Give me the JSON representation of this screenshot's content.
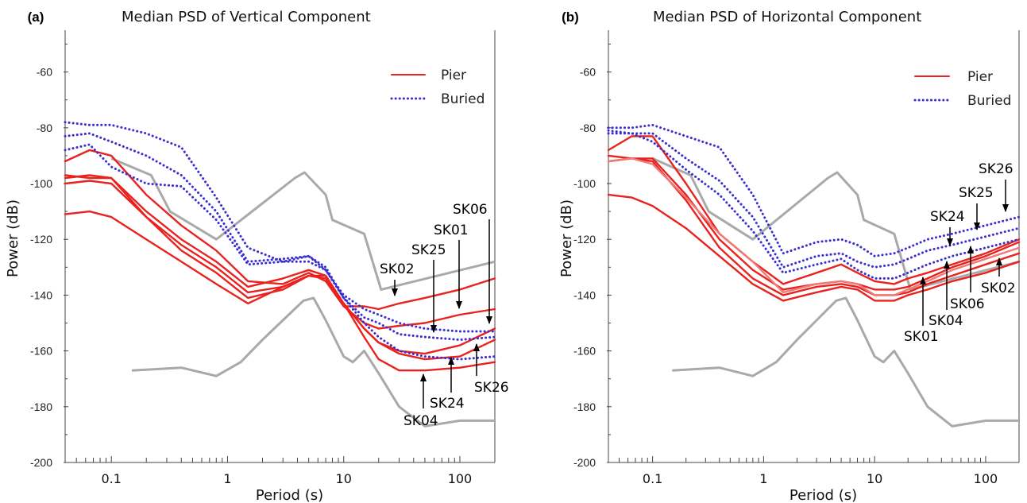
{
  "chart_data": [
    {
      "type": "line",
      "panel_label": "(a)",
      "title": "Median PSD of Vertical Component",
      "xlabel": "Period (s)",
      "ylabel": "Power (dB)",
      "xscale": "log",
      "xlim": [
        0.04,
        200
      ],
      "ylim": [
        -200,
        -45
      ],
      "xticks": [
        0.1,
        1,
        10,
        100
      ],
      "xtick_labels": [
        "0.1",
        "1",
        "10",
        "100"
      ],
      "yticks": [
        -200,
        -180,
        -160,
        -140,
        -120,
        -100,
        -80,
        -60
      ],
      "ytick_labels": [
        "-200",
        "-180",
        "-160",
        "-140",
        "-120",
        "-100",
        "-80",
        "-60"
      ],
      "grid": false,
      "legend_position": "top-right",
      "legend": [
        {
          "label": "Pier",
          "style": "solid",
          "color": "#e8231f"
        },
        {
          "label": "Buried",
          "style": "dotted",
          "color": "#3a2fcf"
        }
      ],
      "noise_models": [
        {
          "kind": "high",
          "color": "#a9a9a9",
          "x": [
            0.1,
            0.22,
            0.32,
            0.8,
            3.8,
            4.6,
            7.0,
            8.0,
            15,
            21,
            200
          ],
          "y": [
            -91,
            -97,
            -110,
            -120,
            -98,
            -96,
            -104,
            -113,
            -118,
            -138,
            -128
          ]
        },
        {
          "kind": "low",
          "color": "#a9a9a9",
          "x": [
            0.15,
            0.4,
            0.8,
            1.3,
            2,
            3,
            4.5,
            5.5,
            7,
            10,
            12,
            15,
            20,
            30,
            50,
            100,
            200
          ],
          "y": [
            -167,
            -166,
            -169,
            -164,
            -156,
            -149,
            -142,
            -141,
            -149,
            -162,
            -164,
            -160,
            -168,
            -180,
            -187,
            -185,
            -185
          ]
        }
      ],
      "series": [
        {
          "group": "Pier",
          "style": "solid",
          "color": "#e8231f",
          "x": [
            0.04,
            0.065,
            0.1,
            0.2,
            0.4,
            0.8,
            1.5,
            3,
            5,
            7,
            10,
            15,
            20,
            30,
            50,
            100,
            200
          ],
          "y": [
            -92,
            -88,
            -90,
            -104,
            -115,
            -124,
            -135,
            -136,
            -132,
            -135,
            -144,
            -144,
            -145,
            -143,
            -141,
            -138,
            -134
          ]
        },
        {
          "group": "Pier",
          "style": "solid",
          "color": "#e8231f",
          "x": [
            0.04,
            0.065,
            0.1,
            0.2,
            0.4,
            0.8,
            1.5,
            3,
            5,
            7,
            10,
            15,
            20,
            30,
            50,
            100,
            200
          ],
          "y": [
            -98,
            -97,
            -98,
            -110,
            -120,
            -128,
            -137,
            -134,
            -131,
            -133,
            -144,
            -150,
            -152,
            -151,
            -150,
            -147,
            -145
          ]
        },
        {
          "group": "Pier",
          "style": "solid",
          "color": "#e8231f",
          "x": [
            0.04,
            0.065,
            0.1,
            0.2,
            0.4,
            0.8,
            1.5,
            3,
            5,
            7,
            10,
            15,
            20,
            30,
            50,
            100,
            200
          ],
          "y": [
            -97,
            -98,
            -98,
            -112,
            -124,
            -132,
            -141,
            -138,
            -133,
            -134,
            -143,
            -152,
            -157,
            -160,
            -161,
            -158,
            -152
          ]
        },
        {
          "group": "Pier",
          "style": "solid",
          "color": "#e8231f",
          "x": [
            0.04,
            0.065,
            0.1,
            0.2,
            0.4,
            0.8,
            1.5,
            3,
            5,
            7,
            10,
            15,
            20,
            30,
            50,
            100,
            200
          ],
          "y": [
            -111,
            -110,
            -112,
            -120,
            -128,
            -136,
            -143,
            -137,
            -133,
            -133,
            -143,
            -155,
            -163,
            -167,
            -167,
            -166,
            -164
          ]
        },
        {
          "group": "Pier",
          "style": "solid",
          "color": "#e8231f",
          "x": [
            0.04,
            0.065,
            0.1,
            0.2,
            0.4,
            0.8,
            1.5,
            3,
            5,
            7,
            10,
            15,
            20,
            30,
            50,
            100,
            200
          ],
          "y": [
            -100,
            -99,
            -100,
            -112,
            -122,
            -130,
            -139,
            -137,
            -133,
            -134,
            -143,
            -152,
            -157,
            -161,
            -163,
            -162,
            -156
          ]
        },
        {
          "group": "Buried",
          "style": "dotted",
          "color": "#3a2fcf",
          "x": [
            0.04,
            0.065,
            0.1,
            0.2,
            0.4,
            0.8,
            1.5,
            3,
            5,
            7,
            10,
            15,
            20,
            30,
            50,
            100,
            200
          ],
          "y": [
            -78,
            -79,
            -79,
            -82,
            -87,
            -105,
            -123,
            -128,
            -128,
            -131,
            -140,
            -145,
            -147,
            -150,
            -152,
            -153,
            -153
          ]
        },
        {
          "group": "Buried",
          "style": "dotted",
          "color": "#3a2fcf",
          "x": [
            0.04,
            0.065,
            0.1,
            0.2,
            0.4,
            0.8,
            1.5,
            3,
            5,
            7,
            10,
            15,
            20,
            30,
            50,
            100,
            200
          ],
          "y": [
            -83,
            -82,
            -85,
            -90,
            -97,
            -110,
            -128,
            -127,
            -126,
            -130,
            -141,
            -148,
            -150,
            -154,
            -155,
            -156,
            -155
          ]
        },
        {
          "group": "Buried",
          "style": "dotted",
          "color": "#3a2fcf",
          "x": [
            0.04,
            0.065,
            0.1,
            0.2,
            0.4,
            0.8,
            1.5,
            3,
            5,
            7,
            10,
            15,
            20,
            30,
            50,
            100,
            200
          ],
          "y": [
            -88,
            -86,
            -94,
            -100,
            -101,
            -113,
            -129,
            -128,
            -126,
            -131,
            -141,
            -150,
            -155,
            -160,
            -162,
            -163,
            -162
          ]
        }
      ],
      "annotations": [
        {
          "label": "SK02",
          "arrow_to": {
            "x": 30,
            "y": -143
          }
        },
        {
          "label": "SK25",
          "arrow_to": {
            "x": 60,
            "y": -155
          }
        },
        {
          "label": "SK01",
          "arrow_to": {
            "x": 100,
            "y": -150
          }
        },
        {
          "label": "SK06",
          "arrow_to": {
            "x": 170,
            "y": -154
          }
        },
        {
          "label": "SK26",
          "arrow_to": {
            "x": 120,
            "y": -157
          }
        },
        {
          "label": "SK24",
          "arrow_to": {
            "x": 75,
            "y": -163
          }
        },
        {
          "label": "SK04",
          "arrow_to": {
            "x": 45,
            "y": -167
          }
        }
      ]
    },
    {
      "type": "line",
      "panel_label": "(b)",
      "title": "Median PSD of Horizontal Component",
      "xlabel": "Period (s)",
      "ylabel": "Power (dB)",
      "xscale": "log",
      "xlim": [
        0.04,
        200
      ],
      "ylim": [
        -200,
        -45
      ],
      "xticks": [
        0.1,
        1,
        10,
        100
      ],
      "xtick_labels": [
        "0.1",
        "1",
        "10",
        "100"
      ],
      "yticks": [
        -200,
        -180,
        -160,
        -140,
        -120,
        -100,
        -80,
        -60
      ],
      "ytick_labels": [
        "-200",
        "-180",
        "-160",
        "-140",
        "-120",
        "-100",
        "-80",
        "-60"
      ],
      "grid": false,
      "legend_position": "top-right",
      "legend": [
        {
          "label": "Pier",
          "style": "solid",
          "color": "#e8231f"
        },
        {
          "label": "Buried",
          "style": "dotted",
          "color": "#3a2fcf"
        }
      ],
      "noise_models": [
        {
          "kind": "high",
          "color": "#a9a9a9",
          "x": [
            0.1,
            0.22,
            0.32,
            0.8,
            3.8,
            4.6,
            7.0,
            8.0,
            15,
            21,
            200
          ],
          "y": [
            -91,
            -97,
            -110,
            -120,
            -98,
            -96,
            -104,
            -113,
            -118,
            -138,
            -128
          ]
        },
        {
          "kind": "low",
          "color": "#a9a9a9",
          "x": [
            0.15,
            0.4,
            0.8,
            1.3,
            2,
            3,
            4.5,
            5.5,
            7,
            10,
            12,
            15,
            20,
            30,
            50,
            100,
            200
          ],
          "y": [
            -167,
            -166,
            -169,
            -164,
            -156,
            -149,
            -142,
            -141,
            -149,
            -162,
            -164,
            -160,
            -168,
            -180,
            -187,
            -185,
            -185
          ]
        }
      ],
      "series": [
        {
          "group": "Pier",
          "style": "solid",
          "color": "#e8231f",
          "x": [
            0.04,
            0.065,
            0.1,
            0.2,
            0.4,
            0.8,
            1.5,
            3,
            5,
            7,
            10,
            15,
            20,
            30,
            50,
            100,
            200
          ],
          "y": [
            -88,
            -83,
            -83,
            -100,
            -118,
            -128,
            -136,
            -132,
            -129,
            -132,
            -135,
            -136,
            -134,
            -132,
            -129,
            -125,
            -120
          ]
        },
        {
          "group": "Pier",
          "style": "solid",
          "color": "#e8231f",
          "x": [
            0.04,
            0.065,
            0.1,
            0.2,
            0.4,
            0.8,
            1.5,
            3,
            5,
            7,
            10,
            15,
            20,
            30,
            50,
            100,
            200
          ],
          "y": [
            -90,
            -91,
            -91,
            -104,
            -120,
            -131,
            -138,
            -136,
            -135,
            -136,
            -138,
            -138,
            -137,
            -134,
            -130,
            -126,
            -121
          ]
        },
        {
          "group": "Pier",
          "style": "solid",
          "color": "#e8231f",
          "x": [
            0.04,
            0.065,
            0.1,
            0.2,
            0.4,
            0.8,
            1.5,
            3,
            5,
            7,
            10,
            15,
            20,
            30,
            50,
            100,
            200
          ],
          "y": [
            -92,
            -91,
            -92,
            -106,
            -123,
            -134,
            -140,
            -137,
            -136,
            -137,
            -140,
            -140,
            -139,
            -136,
            -133,
            -129,
            -125
          ]
        },
        {
          "group": "Pier",
          "style": "solid",
          "color": "#e8231f",
          "x": [
            0.04,
            0.065,
            0.1,
            0.2,
            0.4,
            0.8,
            1.5,
            3,
            5,
            7,
            10,
            15,
            20,
            30,
            50,
            100,
            200
          ],
          "y": [
            -104,
            -105,
            -108,
            -116,
            -126,
            -136,
            -142,
            -139,
            -137,
            -138,
            -142,
            -142,
            -140,
            -138,
            -135,
            -132,
            -128
          ]
        },
        {
          "group": "Pier",
          "style": "solid",
          "color": "#f07a76",
          "x": [
            0.04,
            0.065,
            0.1,
            0.2,
            0.4,
            0.8,
            1.5,
            3,
            5,
            7,
            10,
            15,
            20,
            30,
            50,
            100,
            200
          ],
          "y": [
            -92,
            -91,
            -93,
            -105,
            -118,
            -128,
            -139,
            -136,
            -135,
            -136,
            -140,
            -140,
            -138,
            -135,
            -131,
            -127,
            -123
          ]
        },
        {
          "group": "Buried",
          "style": "dotted",
          "color": "#3a2fcf",
          "x": [
            0.04,
            0.065,
            0.1,
            0.2,
            0.4,
            0.8,
            1.5,
            3,
            5,
            7,
            10,
            15,
            20,
            30,
            50,
            100,
            200
          ],
          "y": [
            -80,
            -80,
            -79,
            -83,
            -87,
            -104,
            -125,
            -121,
            -120,
            -122,
            -126,
            -125,
            -123,
            -120,
            -118,
            -115,
            -112
          ]
        },
        {
          "group": "Buried",
          "style": "dotted",
          "color": "#3a2fcf",
          "x": [
            0.04,
            0.065,
            0.1,
            0.2,
            0.4,
            0.8,
            1.5,
            3,
            5,
            7,
            10,
            15,
            20,
            30,
            50,
            100,
            200
          ],
          "y": [
            -82,
            -82,
            -82,
            -91,
            -99,
            -112,
            -130,
            -126,
            -125,
            -128,
            -130,
            -129,
            -127,
            -124,
            -122,
            -119,
            -116
          ]
        },
        {
          "group": "Buried",
          "style": "dotted",
          "color": "#3a2fcf",
          "x": [
            0.04,
            0.065,
            0.1,
            0.2,
            0.4,
            0.8,
            1.5,
            3,
            5,
            7,
            10,
            15,
            20,
            30,
            50,
            100,
            200
          ],
          "y": [
            -81,
            -82,
            -85,
            -95,
            -104,
            -117,
            -132,
            -129,
            -127,
            -131,
            -134,
            -134,
            -132,
            -129,
            -126,
            -123,
            -120
          ]
        }
      ],
      "annotations": [
        {
          "label": "SK26",
          "arrow_to": {
            "x": 140,
            "y": -113
          }
        },
        {
          "label": "SK25",
          "arrow_to": {
            "x": 85,
            "y": -121
          }
        },
        {
          "label": "SK24",
          "arrow_to": {
            "x": 45,
            "y": -125
          }
        },
        {
          "label": "SK06",
          "arrow_to": {
            "x": 70,
            "y": -126
          }
        },
        {
          "label": "SK04",
          "arrow_to": {
            "x": 42,
            "y": -130
          }
        },
        {
          "label": "SK01",
          "arrow_to": {
            "x": 28,
            "y": -135
          }
        },
        {
          "label": "SK02",
          "arrow_to": {
            "x": 135,
            "y": -128
          }
        }
      ]
    }
  ]
}
